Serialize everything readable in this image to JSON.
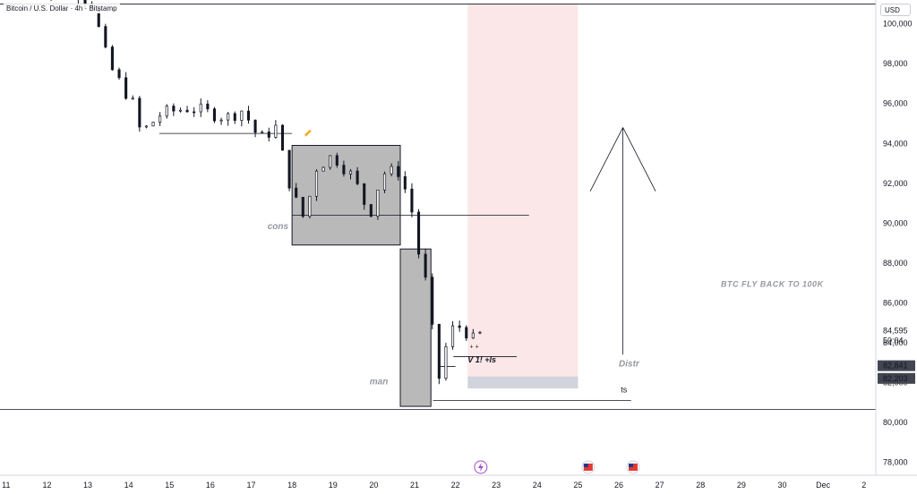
{
  "header": {
    "symbol_title": "Bitcoin / U.S. Dollar · 4h · Bitstamp",
    "currency": "USD"
  },
  "colors": {
    "candle": "#131722",
    "box_fill": "#808080",
    "stop_zone": "#f9d7d9",
    "target_zone": "#d1d4dc",
    "badge": "#434651",
    "note": "#9598a1"
  },
  "icons": [
    "pencil-icon",
    "lightning-icon",
    "us-flag-icon"
  ],
  "annotations": {
    "cons": "cons",
    "man": "man",
    "distr": "Distr",
    "ts": "ts",
    "main_note": "BTC FLY BACK TO 100K",
    "v1_label": "V 1! +ls",
    "plus_label": "+ +"
  },
  "price_labels": {
    "last_price": "84,595",
    "countdown": "50:04",
    "level_1": "82,841",
    "level_2": "82,203"
  },
  "chart_data": {
    "type": "candlestick",
    "y_ticks": [
      78000,
      80000,
      82000,
      84000,
      86000,
      88000,
      90000,
      92000,
      94000,
      96000,
      98000,
      100000
    ],
    "y_tick_labels": [
      "78,000",
      "80,000",
      "82,000",
      "84,000",
      "86,000",
      "88,000",
      "90,000",
      "92,000",
      "94,000",
      "96,000",
      "98,000",
      "100,000"
    ],
    "x_tick_labels": [
      "11",
      "12",
      "13",
      "14",
      "15",
      "16",
      "17",
      "18",
      "19",
      "20",
      "21",
      "22",
      "23",
      "24",
      "25",
      "26",
      "27",
      "28",
      "29",
      "30",
      "Dec",
      "2"
    ],
    "x_tick_days": [
      11,
      12,
      13,
      14,
      15,
      16,
      17,
      18,
      19,
      20,
      21,
      22,
      23,
      24,
      25,
      26,
      27,
      28,
      29,
      30,
      31,
      32
    ],
    "ylim": [
      76400,
      101200
    ],
    "xlim": [
      10.85,
      33.3
    ],
    "price_path_anchors": [
      [
        11.6,
        101500
      ],
      [
        12.5,
        102000
      ],
      [
        13.1,
        101000
      ],
      [
        13.5,
        98000
      ],
      [
        14.1,
        96000
      ],
      [
        14.3,
        94500
      ],
      [
        14.8,
        95500
      ],
      [
        15.5,
        95800
      ],
      [
        16.4,
        95300
      ],
      [
        16.8,
        95700
      ],
      [
        17.2,
        94200
      ],
      [
        17.6,
        94800
      ],
      [
        18.0,
        91500
      ],
      [
        18.3,
        90200
      ],
      [
        18.6,
        92800
      ],
      [
        19.0,
        93400
      ],
      [
        19.5,
        92300
      ],
      [
        19.9,
        90400
      ],
      [
        20.2,
        92500
      ],
      [
        20.6,
        92600
      ],
      [
        20.9,
        91000
      ],
      [
        21.1,
        88500
      ],
      [
        21.3,
        86800
      ],
      [
        21.45,
        84300
      ],
      [
        21.55,
        82300
      ],
      [
        21.65,
        82200
      ],
      [
        21.8,
        84200
      ],
      [
        22.0,
        84900
      ],
      [
        22.2,
        84700
      ],
      [
        22.45,
        84100
      ],
      [
        22.7,
        84600
      ]
    ],
    "zones": {
      "consolidation_box": {
        "x": [
          18.0,
          20.65
        ],
        "y": [
          88900,
          93900
        ]
      },
      "manipulation_box": {
        "x": [
          20.65,
          21.4
        ],
        "y": [
          80800,
          88700
        ]
      },
      "stop_zone": {
        "x": [
          22.3,
          25.0
        ],
        "y": [
          82200,
          101000
        ]
      },
      "target_zone": {
        "x": [
          22.3,
          25.0
        ],
        "y": [
          81700,
          82300
        ]
      }
    },
    "levels": [
      {
        "price": 101000,
        "x": [
          10.85,
          32.6
        ]
      },
      {
        "price": 94500,
        "x": [
          14.75,
          18.0
        ]
      },
      {
        "price": 90400,
        "x": [
          18.0,
          23.8
        ]
      },
      {
        "price": 80650,
        "x": [
          10.85,
          32.6
        ]
      },
      {
        "price": 81100,
        "x": [
          21.45,
          26.3
        ]
      },
      {
        "price": 82800,
        "x": [
          21.6,
          22.0
        ]
      },
      {
        "price": 83300,
        "x": [
          21.95,
          23.5
        ]
      }
    ],
    "arrow": {
      "x": 26.1,
      "from": 83400,
      "to": 94800,
      "wing_dx": 0.8,
      "wing_dy": 3200
    }
  }
}
